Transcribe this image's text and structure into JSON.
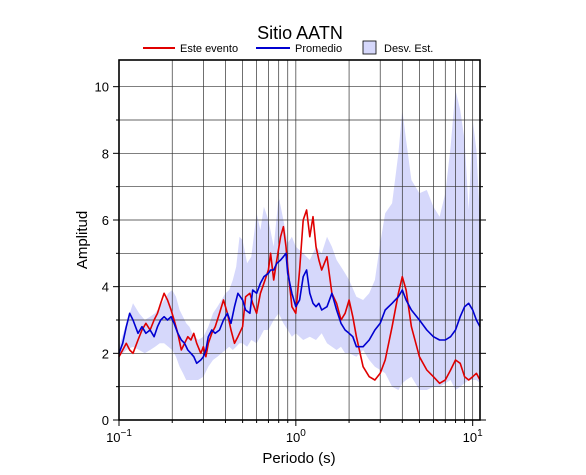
{
  "chart_data": {
    "type": "line",
    "title": "Sitio AATN",
    "xlabel": "Periodo (s)",
    "ylabel": "Amplitud",
    "x_scale": "log",
    "xlim": [
      0.1,
      11
    ],
    "ylim": [
      0,
      10.8
    ],
    "x_tick_labels": [
      {
        "x": 0.1,
        "base": "10",
        "exp": "−1"
      },
      {
        "x": 1,
        "base": "10",
        "exp": "0"
      },
      {
        "x": 10,
        "base": "10",
        "exp": "1"
      }
    ],
    "y_tick_labels": [
      "0",
      "2",
      "4",
      "6",
      "8",
      "10"
    ],
    "y_ticks": [
      0,
      2,
      4,
      6,
      8,
      10
    ],
    "grid": true,
    "legend_position": "top",
    "legend": [
      {
        "label": "Este evento",
        "kind": "line",
        "color": "#e00000"
      },
      {
        "label": "Promedio",
        "kind": "line",
        "color": "#0000d0"
      },
      {
        "label": "Desv. Est.",
        "kind": "patch",
        "color": "#d6d8fb"
      }
    ],
    "series": [
      {
        "name": "Este evento",
        "color": "#e00000",
        "x": [
          0.1,
          0.105,
          0.11,
          0.115,
          0.12,
          0.128,
          0.135,
          0.142,
          0.15,
          0.158,
          0.165,
          0.172,
          0.18,
          0.188,
          0.197,
          0.205,
          0.215,
          0.225,
          0.235,
          0.245,
          0.255,
          0.265,
          0.275,
          0.29,
          0.3,
          0.31,
          0.32,
          0.335,
          0.35,
          0.37,
          0.39,
          0.41,
          0.43,
          0.45,
          0.47,
          0.5,
          0.52,
          0.55,
          0.57,
          0.6,
          0.63,
          0.66,
          0.7,
          0.72,
          0.75,
          0.78,
          0.82,
          0.85,
          0.88,
          0.9,
          0.95,
          1.0,
          1.05,
          1.1,
          1.15,
          1.2,
          1.25,
          1.3,
          1.35,
          1.4,
          1.5,
          1.6,
          1.7,
          1.8,
          1.9,
          2.0,
          2.1,
          2.2,
          2.4,
          2.6,
          2.8,
          3.0,
          3.2,
          3.5,
          3.8,
          4.0,
          4.2,
          4.5,
          5.0,
          5.5,
          6.0,
          6.5,
          7.0,
          7.5,
          8.0,
          8.5,
          9.0,
          9.5,
          10.0,
          10.5,
          11.0
        ],
        "y": [
          1.9,
          2.1,
          2.3,
          2.1,
          2.0,
          2.4,
          2.7,
          2.9,
          2.7,
          3.0,
          3.2,
          3.5,
          3.8,
          3.6,
          3.3,
          3.0,
          2.6,
          2.1,
          2.3,
          2.5,
          2.4,
          2.6,
          2.3,
          2.0,
          2.2,
          1.9,
          2.3,
          2.6,
          2.8,
          3.2,
          3.6,
          3.2,
          2.7,
          2.3,
          2.5,
          2.8,
          3.7,
          3.8,
          3.5,
          3.2,
          3.8,
          4.1,
          4.5,
          5.0,
          4.2,
          4.8,
          5.5,
          5.8,
          5.2,
          4.6,
          3.4,
          3.2,
          4.5,
          6.0,
          6.3,
          5.5,
          6.1,
          5.2,
          4.8,
          4.5,
          4.9,
          3.8,
          3.5,
          3.0,
          3.2,
          3.6,
          3.1,
          2.5,
          1.6,
          1.3,
          1.2,
          1.4,
          1.8,
          2.8,
          3.8,
          4.3,
          3.9,
          2.8,
          1.9,
          1.5,
          1.3,
          1.1,
          1.2,
          1.5,
          1.8,
          1.7,
          1.3,
          1.2,
          1.3,
          1.4,
          1.2
        ]
      },
      {
        "name": "Promedio",
        "color": "#0000d0",
        "x": [
          0.1,
          0.105,
          0.11,
          0.115,
          0.12,
          0.128,
          0.135,
          0.142,
          0.15,
          0.158,
          0.165,
          0.172,
          0.18,
          0.188,
          0.197,
          0.205,
          0.215,
          0.225,
          0.235,
          0.245,
          0.255,
          0.265,
          0.275,
          0.29,
          0.3,
          0.31,
          0.32,
          0.335,
          0.35,
          0.37,
          0.39,
          0.41,
          0.43,
          0.45,
          0.47,
          0.5,
          0.52,
          0.55,
          0.57,
          0.6,
          0.63,
          0.66,
          0.7,
          0.72,
          0.75,
          0.78,
          0.82,
          0.85,
          0.88,
          0.9,
          0.95,
          1.0,
          1.05,
          1.1,
          1.15,
          1.2,
          1.25,
          1.3,
          1.35,
          1.4,
          1.5,
          1.6,
          1.7,
          1.8,
          1.9,
          2.0,
          2.1,
          2.2,
          2.4,
          2.6,
          2.8,
          3.0,
          3.2,
          3.5,
          3.8,
          4.0,
          4.2,
          4.5,
          5.0,
          5.5,
          6.0,
          6.5,
          7.0,
          7.5,
          8.0,
          8.5,
          9.0,
          9.5,
          10.0,
          10.5,
          11.0
        ],
        "y": [
          2.0,
          2.3,
          2.8,
          3.2,
          3.0,
          2.6,
          2.8,
          2.6,
          2.7,
          2.5,
          2.8,
          3.0,
          3.1,
          3.0,
          3.1,
          2.9,
          2.6,
          2.4,
          2.3,
          2.1,
          2.0,
          1.9,
          1.7,
          1.8,
          1.9,
          2.1,
          2.5,
          2.7,
          2.6,
          2.7,
          3.0,
          3.2,
          2.9,
          3.4,
          3.8,
          3.6,
          3.3,
          3.2,
          3.9,
          3.8,
          4.1,
          4.3,
          4.4,
          4.5,
          4.5,
          4.7,
          4.8,
          4.9,
          5.0,
          4.4,
          3.8,
          3.4,
          3.6,
          4.3,
          4.5,
          3.8,
          3.5,
          3.4,
          3.5,
          3.3,
          3.4,
          3.8,
          3.3,
          2.9,
          2.7,
          2.6,
          2.5,
          2.2,
          2.2,
          2.4,
          2.7,
          2.9,
          3.3,
          3.5,
          3.7,
          3.9,
          3.6,
          3.3,
          3.0,
          2.7,
          2.5,
          2.4,
          2.4,
          2.5,
          2.7,
          3.1,
          3.4,
          3.5,
          3.3,
          3.0,
          2.8
        ]
      },
      {
        "name": "Desv. Est.",
        "kind": "band",
        "color": "#d6d8fb",
        "x": [
          0.1,
          0.11,
          0.12,
          0.13,
          0.14,
          0.15,
          0.16,
          0.17,
          0.18,
          0.19,
          0.2,
          0.21,
          0.22,
          0.23,
          0.24,
          0.25,
          0.26,
          0.28,
          0.3,
          0.32,
          0.34,
          0.36,
          0.38,
          0.4,
          0.42,
          0.44,
          0.46,
          0.48,
          0.5,
          0.53,
          0.56,
          0.6,
          0.63,
          0.66,
          0.7,
          0.75,
          0.8,
          0.85,
          0.9,
          0.95,
          1.0,
          1.1,
          1.2,
          1.3,
          1.4,
          1.5,
          1.6,
          1.7,
          1.8,
          1.9,
          2.0,
          2.2,
          2.4,
          2.6,
          2.8,
          3.0,
          3.2,
          3.5,
          3.8,
          4.0,
          4.2,
          4.5,
          5.0,
          5.5,
          6.0,
          6.5,
          7.0,
          7.5,
          8.0,
          8.5,
          9.0,
          9.5,
          10.0,
          10.5,
          11.0
        ],
        "upper": [
          2.2,
          2.9,
          3.5,
          3.2,
          3.0,
          3.1,
          3.2,
          3.4,
          3.6,
          3.8,
          3.9,
          3.7,
          3.3,
          3.1,
          2.9,
          2.8,
          2.6,
          2.4,
          2.5,
          2.8,
          3.2,
          3.4,
          3.6,
          3.8,
          3.9,
          4.2,
          4.6,
          5.5,
          5.4,
          4.7,
          4.9,
          6.2,
          5.7,
          6.4,
          6.0,
          5.2,
          6.7,
          6.0,
          5.3,
          5.5,
          5.2,
          5.0,
          4.8,
          5.2,
          5.0,
          5.5,
          5.2,
          4.8,
          4.6,
          4.4,
          4.2,
          3.7,
          3.6,
          3.8,
          4.2,
          5.3,
          6.2,
          6.5,
          8.0,
          9.3,
          8.4,
          7.2,
          6.8,
          6.9,
          6.4,
          6.1,
          6.8,
          8.2,
          9.9,
          9.3,
          8.4,
          6.3,
          9.0,
          8.1,
          6.0
        ],
        "lower": [
          1.9,
          2.1,
          2.2,
          2.1,
          2.0,
          2.1,
          2.2,
          2.3,
          2.3,
          2.2,
          2.1,
          1.9,
          1.6,
          1.4,
          1.2,
          1.2,
          1.2,
          1.2,
          1.3,
          1.6,
          1.8,
          1.9,
          2.0,
          2.1,
          2.2,
          2.1,
          2.2,
          2.3,
          2.3,
          2.2,
          2.4,
          2.3,
          2.5,
          2.7,
          2.7,
          3.0,
          3.2,
          2.9,
          2.7,
          2.5,
          2.6,
          2.4,
          2.5,
          2.4,
          2.6,
          2.3,
          2.2,
          2.1,
          2.2,
          2.0,
          2.0,
          1.9,
          2.1,
          1.8,
          1.6,
          1.5,
          1.4,
          1.0,
          0.9,
          1.1,
          1.2,
          1.3,
          0.9,
          0.9,
          1.0,
          1.0,
          1.1,
          1.2,
          0.9,
          1.0,
          1.1,
          1.2,
          1.2,
          1.2,
          1.1
        ]
      }
    ]
  }
}
